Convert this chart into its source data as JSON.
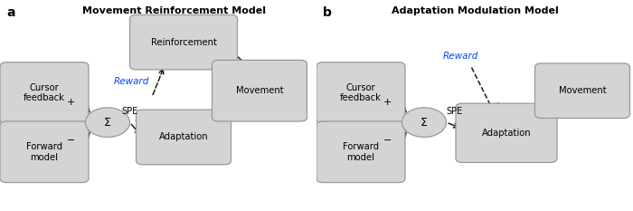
{
  "panel_a_title": "Movement Reinforcement Model",
  "panel_b_title": "Adaptation Modulation Model",
  "label_a": "a",
  "label_b": "b",
  "box_facecolor": "#d4d4d4",
  "box_edgecolor": "#999999",
  "arrow_color": "#1a1a1a",
  "reward_color": "#0044ff",
  "reward_text": "Reward",
  "sigma_text": "Σ",
  "spe_text": "SPE",
  "plus_text": "+",
  "minus_text": "−",
  "figsize": [
    7.0,
    2.33
  ],
  "dpi": 100
}
